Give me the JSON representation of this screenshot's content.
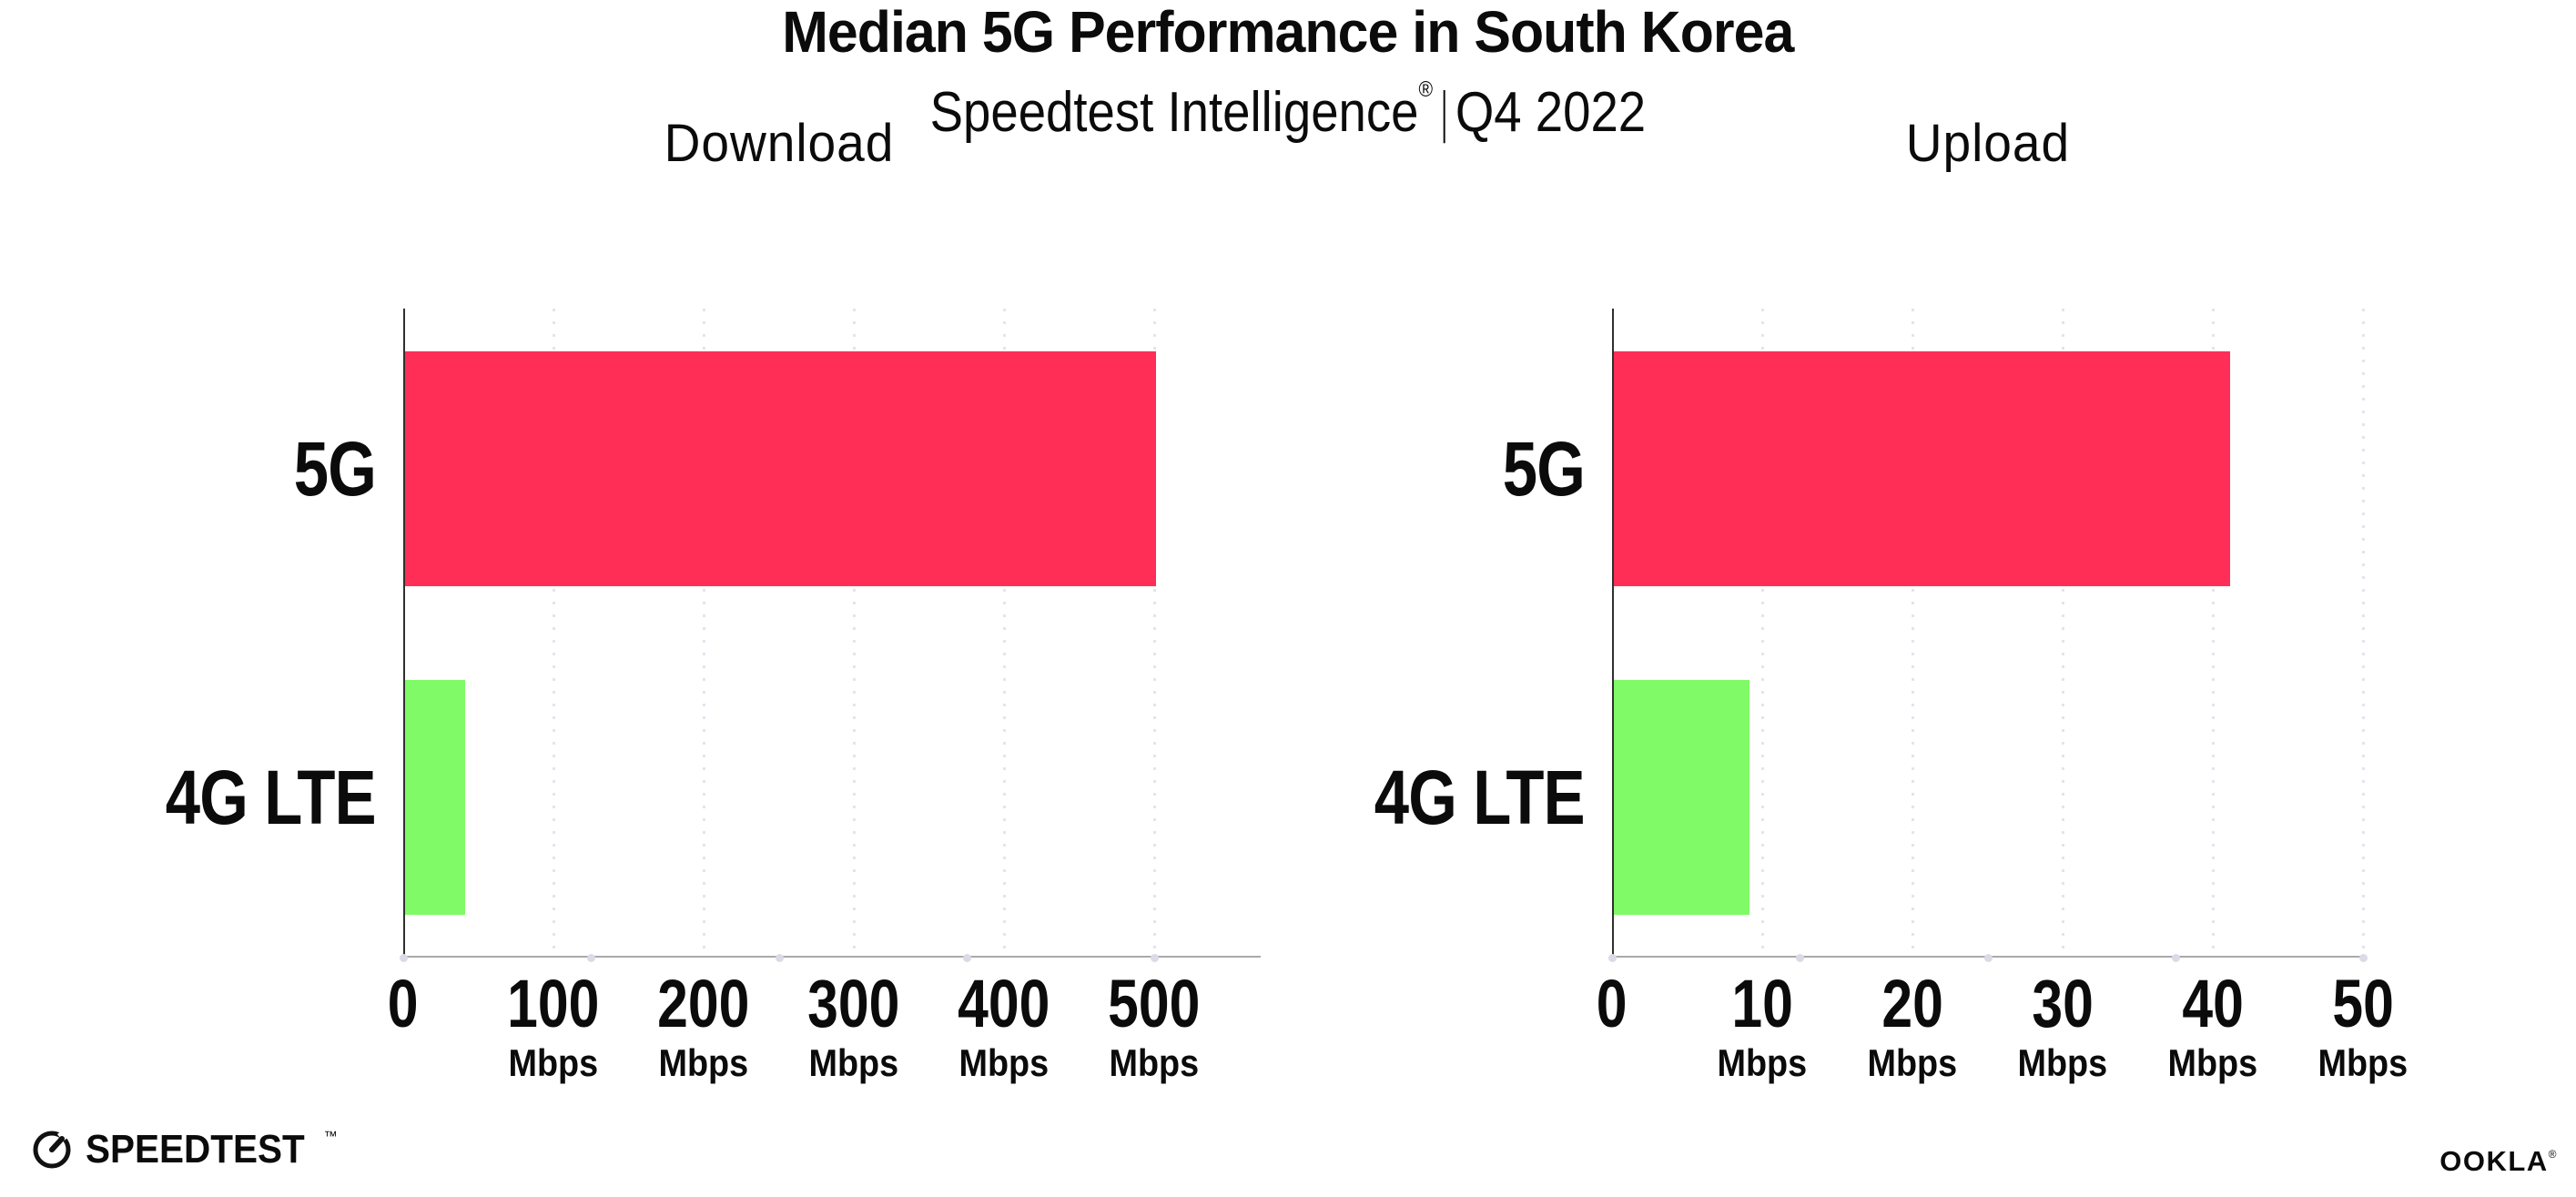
{
  "header": {
    "title": "Median 5G Performance in South Korea",
    "subtitle_brand": "Speedtest Intelligence",
    "subtitle_trademark": "®",
    "subtitle_separator": "|",
    "subtitle_period": "Q4 2022"
  },
  "chart_data": [
    {
      "type": "bar",
      "orientation": "horizontal",
      "title": "Download",
      "categories": [
        "5G",
        "4G LTE"
      ],
      "values": [
        500,
        40
      ],
      "unit": "Mbps",
      "xlim": [
        0,
        500
      ],
      "ticks": [
        0,
        100,
        200,
        300,
        400,
        500
      ],
      "tick_unit_label": "Mbps",
      "bar_colors": [
        "#FF2E56",
        "#80FA66"
      ],
      "grid": "vertical-dotted",
      "legend": "none"
    },
    {
      "type": "bar",
      "orientation": "horizontal",
      "title": "Upload",
      "categories": [
        "5G",
        "4G LTE"
      ],
      "values": [
        41,
        9
      ],
      "unit": "Mbps",
      "xlim": [
        0,
        50
      ],
      "ticks": [
        0,
        10,
        20,
        30,
        40,
        50
      ],
      "tick_unit_label": "Mbps",
      "bar_colors": [
        "#FF2E56",
        "#80FA66"
      ],
      "grid": "vertical-dotted",
      "legend": "none"
    }
  ],
  "footer": {
    "speedtest_label": "SPEEDTEST",
    "speedtest_trademark": "™",
    "ookla_label": "OOKLA",
    "ookla_trademark": "®"
  },
  "colors": {
    "bar_5g": "#FF2E56",
    "bar_4g": "#80FA66",
    "gridline": "#E4E4EF",
    "axis_line": "#AAAAAA",
    "spine": "#2F2F2F",
    "text": "#0B0B0B"
  }
}
